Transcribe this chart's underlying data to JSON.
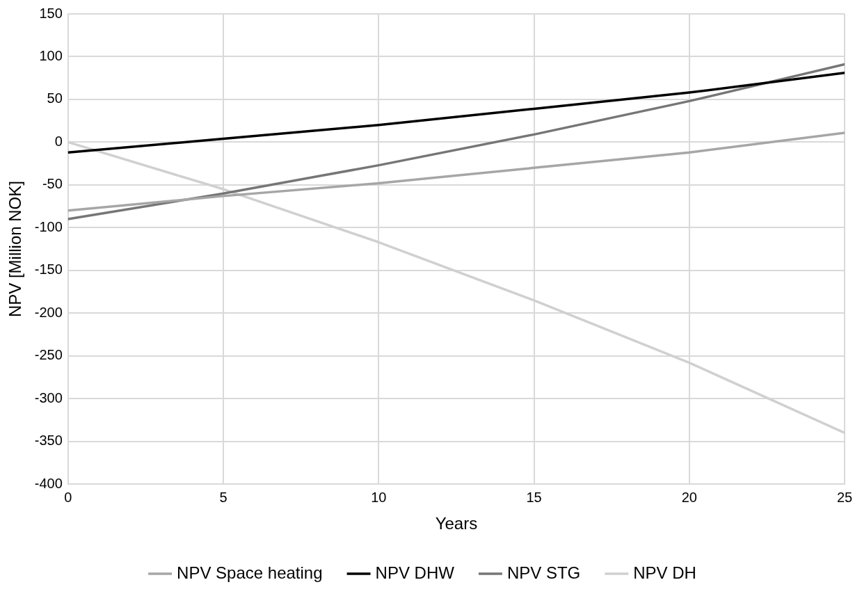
{
  "chart_data": {
    "type": "line",
    "xlabel": "Years",
    "ylabel": "NPV [Million NOK]",
    "xlim": [
      0,
      25
    ],
    "xticks": [
      0,
      5,
      10,
      15,
      20,
      25
    ],
    "ylim": [
      -400,
      150
    ],
    "yticks": [
      -400,
      -350,
      -300,
      -250,
      -200,
      -150,
      -100,
      -50,
      0,
      50,
      100,
      150
    ],
    "grid": true,
    "legend": "bottom",
    "marker": "none",
    "line_style": "solid",
    "x": [
      0,
      5,
      10,
      15,
      20,
      25
    ],
    "series": [
      {
        "name": "NPV Space heating",
        "color": "#a6a6a6",
        "values": [
          -80,
          -63,
          -48,
          -30,
          -12,
          11
        ]
      },
      {
        "name": "NPV DHW",
        "color": "#000000",
        "values": [
          -12,
          4,
          20,
          39,
          58,
          81
        ]
      },
      {
        "name": "NPV STG",
        "color": "#767676",
        "values": [
          -90,
          -60,
          -27,
          9,
          48,
          91
        ]
      },
      {
        "name": "NPV DH",
        "color": "#d0d0d0",
        "values": [
          0,
          -55,
          -117,
          -185,
          -258,
          -340
        ]
      }
    ]
  }
}
